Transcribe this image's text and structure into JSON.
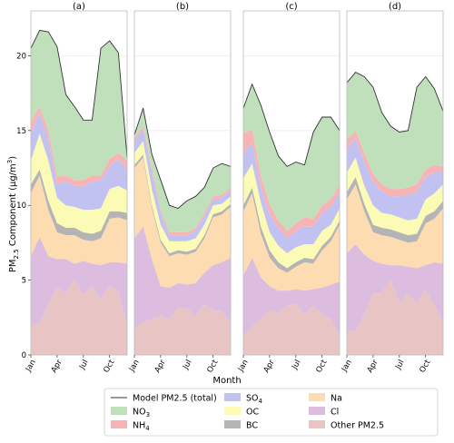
{
  "chart_data": {
    "type": "area",
    "stacked": true,
    "ylabel": "PM2.5 Component (μg/m³)",
    "ylabel_parts": {
      "main": "PM",
      "sub": "2.5",
      "rest": " Component  (μg/m",
      "sup": "3",
      "close": ")"
    },
    "xlabel": "Month",
    "ylim": [
      0,
      23
    ],
    "yticks": [
      0,
      5,
      10,
      15,
      20
    ],
    "x": [
      1,
      2,
      3,
      4,
      5,
      6,
      7,
      8,
      9,
      10,
      11,
      12
    ],
    "xticks": [
      {
        "x": 1,
        "label": "Jan"
      },
      {
        "x": 4,
        "label": "Apr"
      },
      {
        "x": 7,
        "label": "Jul"
      },
      {
        "x": 10,
        "label": "Oct"
      }
    ],
    "grid": true,
    "legend_location": "bottom",
    "legend": [
      {
        "key": "total",
        "label": "Model PM2.5 (total)",
        "kind": "line"
      },
      {
        "key": "NO3",
        "label": "NO",
        "sub": "3",
        "kind": "patch"
      },
      {
        "key": "NH4",
        "label": "NH",
        "sub": "4",
        "kind": "patch"
      },
      {
        "key": "SO4",
        "label": "SO",
        "sub": "4",
        "kind": "patch"
      },
      {
        "key": "OC",
        "label": "OC",
        "sub": "",
        "kind": "patch"
      },
      {
        "key": "BC",
        "label": "BC",
        "sub": "",
        "kind": "patch"
      },
      {
        "key": "Na",
        "label": "Na",
        "sub": "",
        "kind": "patch"
      },
      {
        "key": "Cl",
        "label": "Cl",
        "sub": "",
        "kind": "patch"
      },
      {
        "key": "Other",
        "label": "Other PM2.5",
        "sub": "",
        "kind": "patch"
      }
    ],
    "colors": {
      "Other": "#e8c4c4",
      "Cl": "#dcbde0",
      "Na": "#fcdcb0",
      "BC": "#b4b4b4",
      "OC": "#fbfbb6",
      "SO4": "#c2c2f2",
      "NH4": "#f8b4b4",
      "NO3": "#c0e0bc",
      "total": "#333333"
    },
    "stack_order": [
      "Other",
      "Cl",
      "Na",
      "BC",
      "OC",
      "SO4",
      "NH4",
      "NO3"
    ],
    "panels": [
      {
        "title": "(a)",
        "cumulative": {
          "Other": [
            2.0,
            2.1,
            3.4,
            4.5,
            4.1,
            5.1,
            4.0,
            4.6,
            3.7,
            4.6,
            4.3,
            1.9
          ],
          "Cl": [
            6.6,
            7.9,
            6.6,
            6.4,
            6.4,
            6.1,
            6.3,
            6.1,
            6.0,
            6.2,
            6.2,
            6.1
          ],
          "Na": [
            10.8,
            12.0,
            9.7,
            8.2,
            8.0,
            8.0,
            7.7,
            7.6,
            7.8,
            9.1,
            9.2,
            9.0
          ],
          "BC": [
            11.4,
            12.4,
            10.3,
            8.8,
            8.5,
            8.5,
            8.2,
            8.1,
            8.3,
            9.6,
            9.6,
            9.5
          ],
          "OC": [
            13.0,
            14.8,
            13.0,
            10.5,
            10.0,
            9.9,
            9.7,
            9.7,
            9.8,
            11.1,
            11.3,
            11.0
          ],
          "SO4": [
            14.8,
            16.2,
            14.4,
            11.4,
            11.6,
            11.3,
            11.3,
            11.6,
            11.7,
            12.6,
            13.1,
            12.4
          ],
          "NH4": [
            15.6,
            16.6,
            15.0,
            11.9,
            12.0,
            11.7,
            11.7,
            12.0,
            12.0,
            13.1,
            13.5,
            13.0
          ],
          "NO3": [
            20.5,
            21.7,
            21.6,
            20.6,
            17.4,
            16.6,
            15.7,
            15.7,
            20.5,
            21.0,
            20.2,
            13.2
          ]
        }
      },
      {
        "title": "(b)",
        "cumulative": {
          "Other": [
            1.8,
            2.2,
            2.4,
            2.6,
            2.4,
            3.2,
            3.1,
            2.6,
            3.4,
            3.0,
            2.9,
            2.1
          ],
          "Cl": [
            7.8,
            8.6,
            6.4,
            4.6,
            4.5,
            4.8,
            4.7,
            4.8,
            5.5,
            6.0,
            6.2,
            6.5
          ],
          "Na": [
            12.5,
            13.2,
            9.8,
            7.5,
            6.6,
            6.8,
            6.7,
            6.9,
            7.8,
            9.2,
            9.4,
            9.9
          ],
          "BC": [
            12.7,
            13.4,
            10.0,
            7.7,
            6.8,
            7.0,
            6.9,
            7.1,
            8.0,
            9.4,
            9.6,
            10.1
          ],
          "OC": [
            13.5,
            14.3,
            11.1,
            8.7,
            7.6,
            7.6,
            7.6,
            7.8,
            8.7,
            10.0,
            10.1,
            10.6
          ],
          "SO4": [
            14.3,
            15.1,
            12.2,
            9.5,
            8.0,
            8.0,
            8.0,
            8.3,
            9.3,
            10.4,
            10.5,
            11.0
          ],
          "NH4": [
            14.5,
            15.3,
            12.5,
            9.7,
            8.2,
            8.2,
            8.2,
            8.5,
            9.5,
            10.6,
            10.7,
            11.2
          ],
          "NO3": [
            14.7,
            16.5,
            13.4,
            11.7,
            10.0,
            9.8,
            10.3,
            10.6,
            11.2,
            12.5,
            12.8,
            12.6
          ]
        }
      },
      {
        "title": "(c)",
        "cumulative": {
          "Other": [
            1.3,
            1.9,
            2.4,
            3.0,
            2.8,
            3.3,
            3.4,
            2.7,
            3.3,
            2.7,
            2.4,
            1.3
          ],
          "Cl": [
            5.3,
            6.5,
            5.2,
            4.6,
            4.3,
            4.3,
            4.4,
            4.3,
            4.4,
            4.5,
            4.7,
            4.9
          ],
          "Na": [
            9.6,
            10.8,
            8.1,
            6.5,
            5.8,
            5.5,
            5.9,
            6.2,
            6.1,
            7.0,
            7.6,
            8.7
          ],
          "BC": [
            10.0,
            11.2,
            8.6,
            7.0,
            6.2,
            5.8,
            6.2,
            6.5,
            6.4,
            7.3,
            7.9,
            9.0
          ],
          "OC": [
            11.8,
            12.8,
            10.2,
            8.2,
            7.3,
            6.8,
            7.2,
            7.4,
            7.4,
            8.3,
            8.7,
            9.8
          ],
          "SO4": [
            13.5,
            14.2,
            11.2,
            9.4,
            8.5,
            7.8,
            8.3,
            8.6,
            8.6,
            9.5,
            9.9,
            10.9
          ],
          "NH4": [
            14.8,
            15.1,
            12.0,
            10.1,
            9.0,
            8.3,
            8.8,
            9.2,
            9.1,
            10.0,
            10.4,
            11.4
          ],
          "NO3": [
            16.5,
            18.1,
            16.7,
            14.9,
            13.3,
            12.6,
            12.9,
            12.7,
            14.9,
            15.9,
            15.9,
            15.0
          ]
        }
      },
      {
        "title": "(d)",
        "cumulative": {
          "Other": [
            1.7,
            1.6,
            2.7,
            4.1,
            4.2,
            5.0,
            3.5,
            4.1,
            3.5,
            4.4,
            3.3,
            2.2
          ],
          "Cl": [
            6.8,
            7.4,
            6.7,
            6.3,
            6.1,
            6.0,
            6.0,
            5.9,
            5.8,
            6.0,
            6.2,
            6.1
          ],
          "Na": [
            10.4,
            11.4,
            9.6,
            8.2,
            8.0,
            7.9,
            7.7,
            7.5,
            7.6,
            8.8,
            9.1,
            9.8
          ],
          "BC": [
            10.9,
            11.9,
            10.1,
            8.7,
            8.5,
            8.4,
            8.2,
            8.0,
            8.1,
            9.3,
            9.6,
            10.3
          ],
          "OC": [
            12.2,
            13.2,
            11.3,
            10.0,
            9.5,
            9.4,
            9.2,
            9.0,
            9.1,
            10.4,
            10.8,
            11.4
          ],
          "SO4": [
            13.8,
            14.5,
            12.9,
            11.6,
            10.9,
            10.6,
            10.6,
            10.7,
            10.9,
            11.9,
            12.2,
            12.2
          ],
          "NH4": [
            14.4,
            15.0,
            13.5,
            12.1,
            11.4,
            11.1,
            11.1,
            11.2,
            11.4,
            12.4,
            12.7,
            12.6
          ],
          "NO3": [
            18.2,
            18.9,
            18.6,
            17.9,
            16.2,
            15.3,
            14.9,
            15.0,
            17.9,
            18.6,
            17.8,
            16.3
          ]
        }
      }
    ]
  }
}
